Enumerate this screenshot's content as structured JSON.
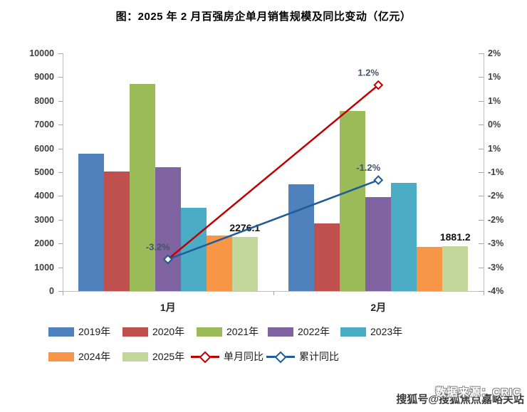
{
  "title": "图：2025 年 2 月百强房企单月销售规模及同比变动（亿元）",
  "watermark": "搜狐号@搜狐焦点嘉峪关站",
  "source_text": "数据来源：CRIC",
  "chart_data": {
    "type": "bar",
    "subtype": "grouped bars with two overlay line series (secondary percent axis)",
    "categories": [
      "1月",
      "2月"
    ],
    "bar_series": [
      {
        "name": "2019年",
        "color": "#4F81BD",
        "values": [
          5780,
          4500
        ]
      },
      {
        "name": "2020年",
        "color": "#C0504D",
        "values": [
          5020,
          2850
        ]
      },
      {
        "name": "2021年",
        "color": "#9BBB59",
        "values": [
          8710,
          7580
        ]
      },
      {
        "name": "2022年",
        "color": "#8064A2",
        "values": [
          5200,
          3950
        ]
      },
      {
        "name": "2023年",
        "color": "#4BACC6",
        "values": [
          3500,
          4560
        ]
      },
      {
        "name": "2024年",
        "color": "#F79646",
        "values": [
          2350,
          1850
        ]
      },
      {
        "name": "2025年",
        "color": "#C3D69B",
        "values": [
          2276.1,
          1881.2
        ]
      }
    ],
    "bar_labels": [
      {
        "series": "2025年",
        "category": "1月",
        "text": "2276.1"
      },
      {
        "series": "2025年",
        "category": "2月",
        "text": "1881.2"
      }
    ],
    "line_series": [
      {
        "name": "单月同比",
        "color": "#C00000",
        "values_pct": [
          -3.2,
          1.2
        ],
        "point_labels": [
          "-3.2%",
          "1.2%"
        ]
      },
      {
        "name": "累计同比",
        "color": "#1F5C99",
        "values_pct": [
          -3.2,
          -1.2
        ],
        "point_labels": [
          "",
          "-1.2%"
        ]
      }
    ],
    "left_axis": {
      "min": 0,
      "max": 10000,
      "tick_labels": [
        "0",
        "1000",
        "2000",
        "3000",
        "4000",
        "5000",
        "6000",
        "7000",
        "8000",
        "9000",
        "10000"
      ]
    },
    "right_axis": {
      "min": -4,
      "max": 2,
      "tick_labels_top_to_bottom": [
        "2%",
        "1%",
        "1%",
        "0%",
        "1%",
        "-1%",
        "-2%",
        "-2%",
        "-3%",
        "-3%",
        "-4%"
      ]
    },
    "legend_rows": [
      [
        "2019年",
        "2020年",
        "2021年",
        "2022年",
        "2023年"
      ],
      [
        "2024年",
        "2025年",
        "单月同比",
        "累计同比"
      ]
    ],
    "grid": "off",
    "legend_position": "bottom"
  }
}
